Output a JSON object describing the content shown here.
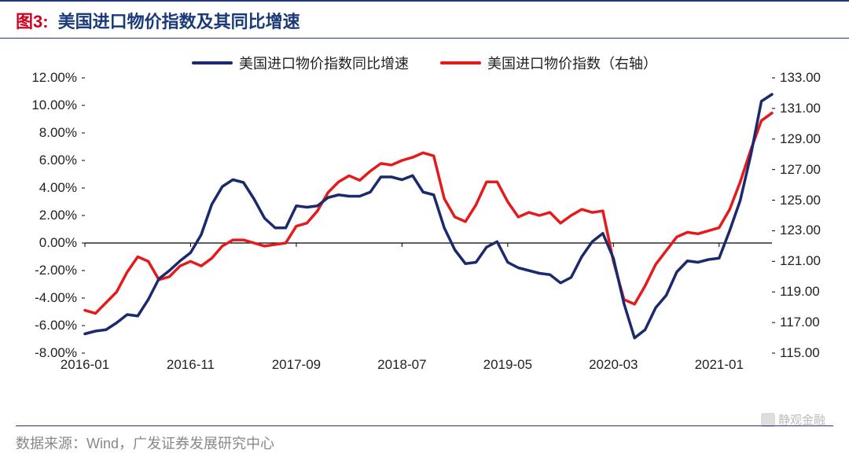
{
  "header": {
    "fig_label": "图3:",
    "title": "美国进口物价指数及其同比增速"
  },
  "legend": {
    "series1_label": "美国进口物价指数同比增速",
    "series2_label": "美国进口物价指数（右轴）"
  },
  "footer": {
    "source": "数据来源：Wind，广发证券发展研究中心"
  },
  "watermark": {
    "text": "静观金融"
  },
  "chart": {
    "type": "dual-axis-line",
    "background_color": "#ffffff",
    "title_color": "#1a3a7a",
    "label_color": "#d00020",
    "axis_font_size": 17,
    "line_width": 3.5,
    "series1": {
      "name": "美国进口物价指数同比增速",
      "color": "#1a2a6c",
      "axis": "left",
      "data": [
        -6.6,
        -6.4,
        -6.3,
        -5.8,
        -5.2,
        -5.3,
        -4.1,
        -2.6,
        -2.0,
        -1.3,
        -0.7,
        0.6,
        2.8,
        4.1,
        4.6,
        4.4,
        3.2,
        1.8,
        1.1,
        1.1,
        2.7,
        2.6,
        2.7,
        3.3,
        3.5,
        3.4,
        3.4,
        3.7,
        4.8,
        4.8,
        4.6,
        4.9,
        3.7,
        3.5,
        1.1,
        -0.5,
        -1.5,
        -1.4,
        -0.3,
        0.1,
        -1.4,
        -1.8,
        -2.0,
        -2.2,
        -2.3,
        -2.9,
        -2.5,
        -1.0,
        0.1,
        0.7,
        -1.1,
        -4.4,
        -6.9,
        -6.3,
        -4.7,
        -3.8,
        -2.1,
        -1.3,
        -1.4,
        -1.2,
        -1.1,
        0.9,
        3.1,
        6.4,
        10.3,
        10.8
      ]
    },
    "series2": {
      "name": "美国进口物价指数（右轴）",
      "color": "#e41a1c",
      "axis": "right",
      "data": [
        117.8,
        117.6,
        118.3,
        119.0,
        120.3,
        121.3,
        121.0,
        119.8,
        120.0,
        120.7,
        121.0,
        120.7,
        121.2,
        122.0,
        122.4,
        122.4,
        122.2,
        122.0,
        122.1,
        122.2,
        123.3,
        123.5,
        124.3,
        125.5,
        126.2,
        126.6,
        126.3,
        126.9,
        127.4,
        127.3,
        127.6,
        127.8,
        128.1,
        127.9,
        125.1,
        123.9,
        123.6,
        124.7,
        126.2,
        126.2,
        124.9,
        123.9,
        124.2,
        124.0,
        124.2,
        123.5,
        124.0,
        124.4,
        124.2,
        124.3,
        121.0,
        118.5,
        118.2,
        119.4,
        120.8,
        121.7,
        122.6,
        122.9,
        122.8,
        123.0,
        123.2,
        124.4,
        126.2,
        128.3,
        130.2,
        130.7
      ]
    },
    "x": {
      "count": 66,
      "ticks": [
        0,
        10,
        20,
        30,
        40,
        50,
        60
      ],
      "tick_labels": [
        "2016-01",
        "2016-11",
        "2017-09",
        "2018-07",
        "2019-05",
        "2020-03",
        "2021-01"
      ]
    },
    "y_left": {
      "min": -8,
      "max": 12,
      "step": 2,
      "suffix": "%",
      "decimals": 2,
      "tick_labels": [
        "12.00%",
        "10.00%",
        "8.00%",
        "6.00%",
        "4.00%",
        "2.00%",
        "0.00%",
        "-2.00%",
        "-4.00%",
        "-6.00%",
        "-8.00%"
      ]
    },
    "y_right": {
      "min": 115,
      "max": 133,
      "step": 2,
      "decimals": 2,
      "tick_labels": [
        "133.00",
        "131.00",
        "129.00",
        "127.00",
        "125.00",
        "123.00",
        "121.00",
        "119.00",
        "117.00",
        "115.00"
      ]
    },
    "zero_line_color": "#000000",
    "tick_mark_color": "#000000"
  }
}
